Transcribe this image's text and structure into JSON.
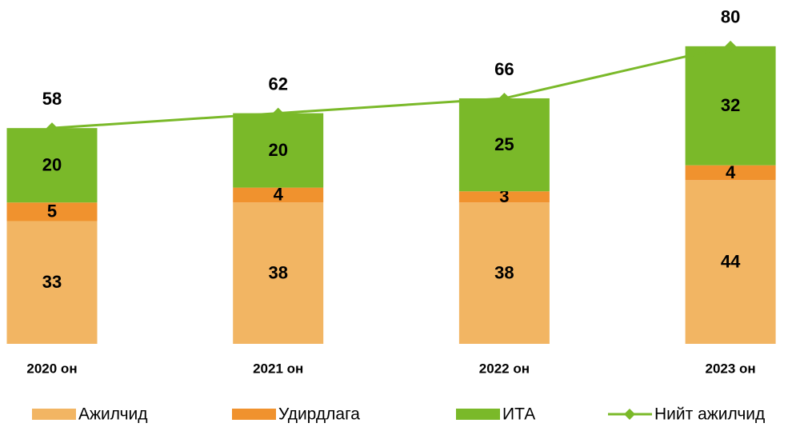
{
  "chart_data": {
    "type": "bar",
    "stacked": true,
    "categories": [
      "2020 он",
      "2021 он",
      "2022 он",
      "2023 он"
    ],
    "series": [
      {
        "name": "Ажилчид",
        "color": "#f2b563",
        "values": [
          33,
          38,
          38,
          44
        ]
      },
      {
        "name": "Удирдлага",
        "color": "#f0922e",
        "values": [
          5,
          4,
          3,
          4
        ]
      },
      {
        "name": "ИТА",
        "color": "#7ab929",
        "values": [
          20,
          20,
          25,
          32
        ]
      },
      {
        "name": "Нийт ажилчид",
        "color": "#7ab929",
        "type": "line",
        "values": [
          58,
          62,
          66,
          80
        ]
      }
    ],
    "ylim": [
      0,
      92
    ],
    "legend": "bottom"
  }
}
